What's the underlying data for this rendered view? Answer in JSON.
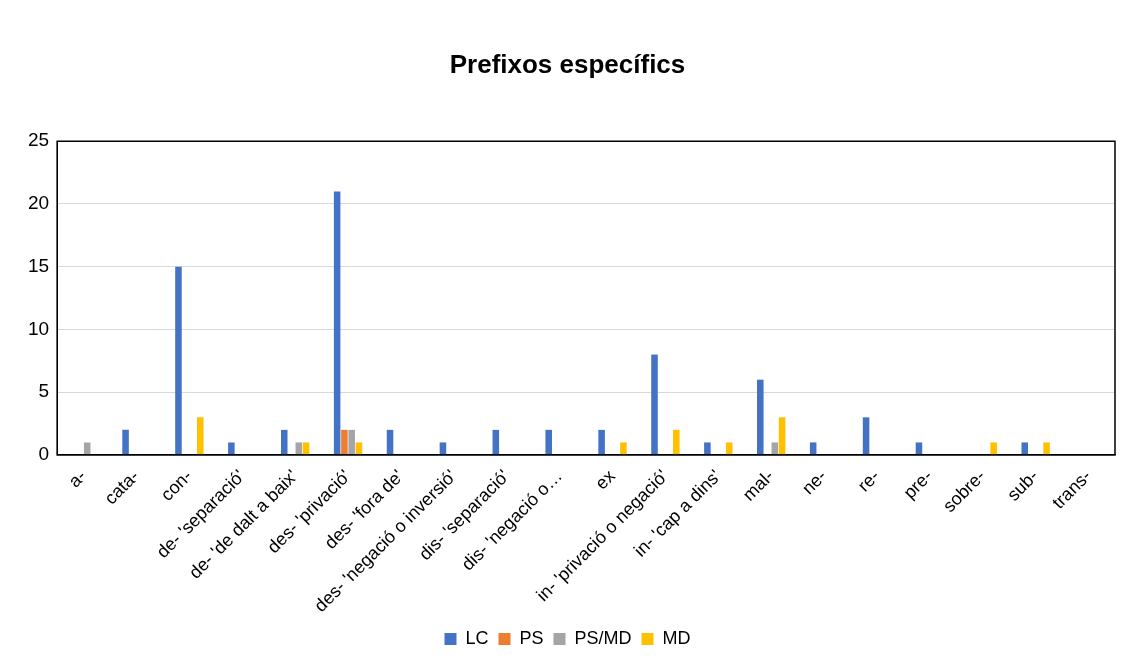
{
  "chart_data": {
    "type": "bar",
    "title": "Prefixos específics",
    "categories": [
      "a-",
      "cata-",
      "con-",
      "de- 'separació'",
      "de- 'de dalt a baix'",
      "des- 'privació'",
      "des- 'fora de'",
      "des- 'negació o inversió'",
      "dis- 'separació'",
      "dis- 'negació o…",
      "ex",
      "in- 'privació o negació'",
      "in- 'cap a dins'",
      "mal-",
      "ne-",
      "re-",
      "pre-",
      "sobre-",
      "sub-",
      "trans-"
    ],
    "series": [
      {
        "name": "LC",
        "color": "#4472c4",
        "values": [
          0,
          2,
          15,
          1,
          2,
          21,
          2,
          1,
          2,
          2,
          2,
          8,
          1,
          6,
          1,
          3,
          1,
          0,
          1,
          0
        ]
      },
      {
        "name": "PS",
        "color": "#ed7d31",
        "values": [
          0,
          0,
          0,
          0,
          0,
          2,
          0,
          0,
          0,
          0,
          0,
          0,
          0,
          0,
          0,
          0,
          0,
          0,
          0,
          0
        ]
      },
      {
        "name": "PS/MD",
        "color": "#a5a5a5",
        "values": [
          1,
          0,
          0,
          0,
          1,
          2,
          0,
          0,
          0,
          0,
          0,
          0,
          0,
          1,
          0,
          0,
          0,
          0,
          0,
          0
        ]
      },
      {
        "name": "MD",
        "color": "#ffc000",
        "values": [
          0,
          0,
          3,
          0,
          1,
          1,
          0,
          0,
          0,
          0,
          1,
          2,
          1,
          3,
          0,
          0,
          0,
          1,
          1,
          0
        ]
      }
    ],
    "ylim": [
      0,
      25
    ],
    "yticks": [
      0,
      5,
      10,
      15,
      20,
      25
    ],
    "grid": "y",
    "legend": "bottom"
  }
}
